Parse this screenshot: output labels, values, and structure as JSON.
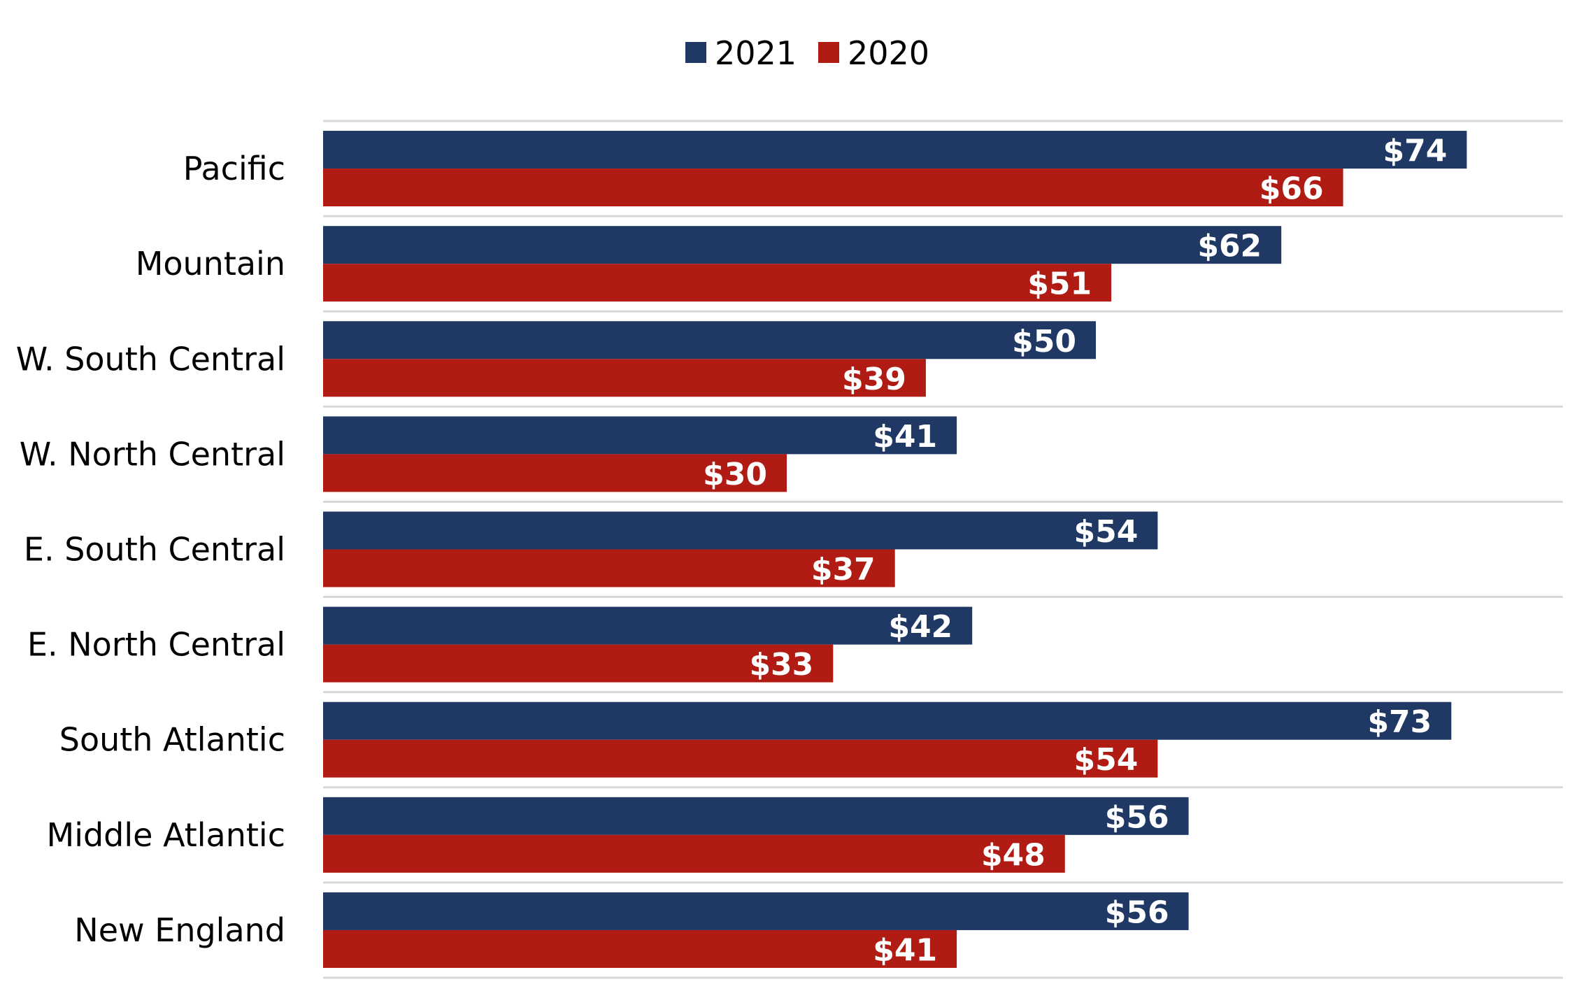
{
  "chart_data": {
    "type": "bar",
    "orientation": "horizontal",
    "categories": [
      "Pacific",
      "Mountain",
      "W. South Central",
      "W. North Central",
      "E. South Central",
      "E. North Central",
      "South Atlantic",
      "Middle Atlantic",
      "New England"
    ],
    "series": [
      {
        "name": "2021",
        "color": "#1f3864",
        "values": [
          74,
          62,
          50,
          41,
          54,
          42,
          73,
          56,
          56
        ],
        "labels": [
          "$74",
          "$62",
          "$50",
          "$41",
          "$54",
          "$42",
          "$73",
          "$56",
          "$56"
        ]
      },
      {
        "name": "2020",
        "color": "#b01c14",
        "values": [
          66,
          51,
          39,
          30,
          37,
          33,
          54,
          48,
          41
        ],
        "labels": [
          "$66",
          "$51",
          "$39",
          "$30",
          "$37",
          "$33",
          "$54",
          "$48",
          "$41"
        ]
      }
    ],
    "xlim": [
      0,
      80
    ],
    "legend": "top-center",
    "grid": "horizontal separators between categories",
    "title": "",
    "xlabel": "",
    "ylabel": ""
  }
}
